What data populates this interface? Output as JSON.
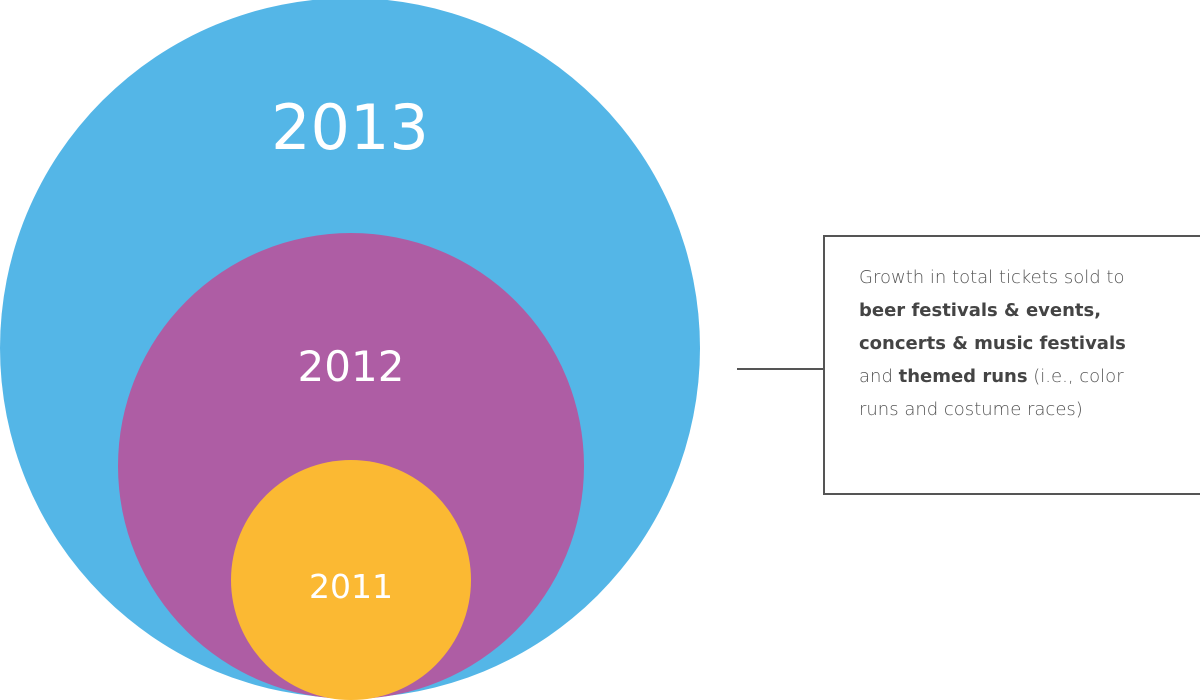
{
  "colors": {
    "circle_2013": "#54B6E7",
    "circle_2012": "#AE5DA4",
    "circle_2011": "#FBB933",
    "label": "#FFFFFF",
    "callout_text": "#555555",
    "callout_border": "#555555"
  },
  "circles": [
    {
      "year": "2013"
    },
    {
      "year": "2012"
    },
    {
      "year": "2011"
    }
  ],
  "callout": {
    "line1": "Growth in total tickets  sold to",
    "line2": "beer festivals & events,",
    "line3": "concerts & music festivals",
    "line4_pre": "and ",
    "line4_bold": "themed runs",
    "line4_post": " (i.e., color",
    "line5": "runs and costume races)"
  }
}
